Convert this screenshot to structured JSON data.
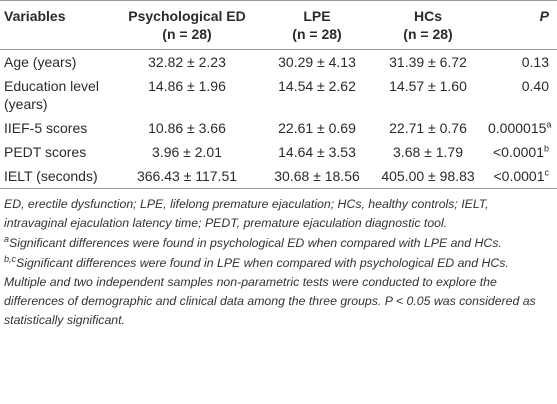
{
  "table": {
    "header": [
      {
        "name": "Variables"
      },
      {
        "name": "Psychological ED",
        "n": "(n = 28)"
      },
      {
        "name": "LPE",
        "n": "(n = 28)"
      },
      {
        "name": "HCs",
        "n": "(n = 28)"
      },
      {
        "name": "P"
      }
    ],
    "rows": [
      [
        "Age (years)",
        "32.82 ± 2.23",
        "30.29 ± 4.13",
        "31.39 ± 6.72",
        {
          "text": "0.13"
        }
      ],
      [
        "Education level (years)",
        "14.86 ± 1.96",
        "14.54 ± 2.62",
        "14.57 ± 1.60",
        {
          "text": "0.40"
        }
      ],
      [
        "IIEF-5 scores",
        "10.86 ± 3.66",
        "22.61 ± 0.69",
        "22.71 ± 0.76",
        {
          "text": "0.000015",
          "sup": "a"
        }
      ],
      [
        "PEDT scores",
        "3.96 ± 2.01",
        "14.64 ± 3.53",
        "3.68 ± 1.79",
        {
          "text": "<0.0001",
          "sup": "b"
        }
      ],
      [
        "IELT (seconds)",
        "366.43 ± 117.51",
        "30.68 ± 18.56",
        "405.00 ± 98.83",
        {
          "text": "<0.0001",
          "sup": "c"
        }
      ]
    ]
  },
  "notes": [
    {
      "text": "ED, erectile dysfunction; LPE, lifelong premature ejaculation; HCs, healthy controls; IELT, intravaginal ejaculation latency time; PEDT, premature ejaculation diagnostic tool."
    },
    {
      "mark": "a",
      "text": "Significant differences were found in psychological ED when compared with LPE and HCs."
    },
    {
      "mark": "b,c",
      "text": "Significant differences were found in LPE when compared with psychological ED and HCs. Multiple and two independent samples non-parametric tests were conducted to explore the differences of demographic and clinical data among the three groups. P < 0.05 was considered as statistically significant."
    }
  ]
}
